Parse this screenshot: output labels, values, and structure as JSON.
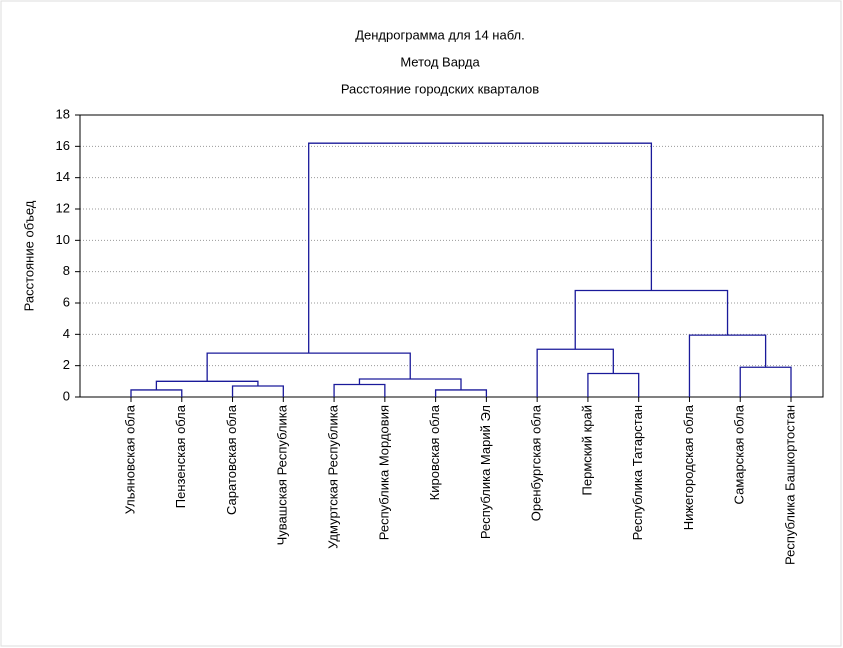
{
  "chart_data": {
    "type": "dendrogram",
    "title": "Дендрограмма для 14 набл.",
    "subtitle": "Метод Варда",
    "subtitle2": "Расстояние городских кварталов",
    "ylabel": "Расстояние объед",
    "leaves": [
      "Ульяновская обла",
      "Пензенская обла",
      "Саратовская обла",
      "Чувашская Республика",
      "Удмуртская Республика",
      "Республика Мордовия",
      "Кировская обла",
      "Республика Марий Эл",
      "Оренбургская обла",
      "Пермский край",
      "Республика Татарстан",
      "Нижегородская обла",
      "Самарская обла",
      "Республика Башкортостан"
    ],
    "merges": [
      {
        "children": [
          0,
          1
        ],
        "height": 0.45
      },
      {
        "children": [
          6,
          7
        ],
        "height": 0.45
      },
      {
        "children": [
          2,
          3
        ],
        "height": 0.7
      },
      {
        "children": [
          4,
          5
        ],
        "height": 0.8
      },
      {
        "children": [
          14,
          16
        ],
        "height": 1.0
      },
      {
        "children": [
          17,
          15
        ],
        "height": 1.15
      },
      {
        "children": [
          9,
          10
        ],
        "height": 1.5
      },
      {
        "children": [
          12,
          13
        ],
        "height": 1.9
      },
      {
        "children": [
          18,
          19
        ],
        "height": 2.8
      },
      {
        "children": [
          8,
          20
        ],
        "height": 3.05
      },
      {
        "children": [
          11,
          21
        ],
        "height": 3.95
      },
      {
        "children": [
          23,
          24
        ],
        "height": 6.8
      },
      {
        "children": [
          22,
          25
        ],
        "height": 16.2
      }
    ],
    "color": "#1a1a9a",
    "ylim": [
      0,
      18
    ],
    "yticks": [
      0,
      2,
      4,
      6,
      8,
      10,
      12,
      14,
      16,
      18
    ],
    "grid": true
  }
}
